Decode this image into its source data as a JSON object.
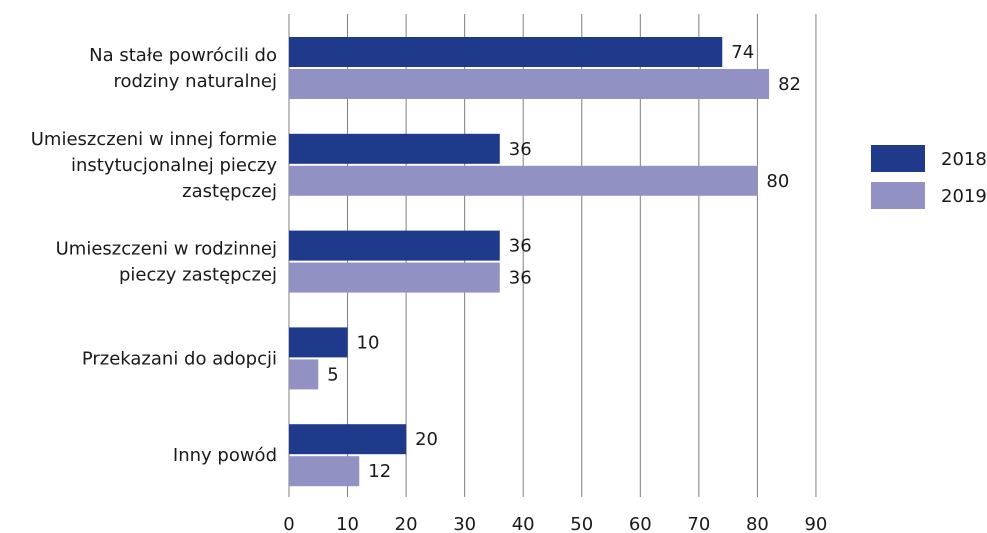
{
  "chart_data": {
    "type": "bar",
    "orientation": "horizontal",
    "categories": [
      [
        "Na stałe powrócili do",
        "rodziny naturalnej"
      ],
      [
        "Umieszczeni w innej formie",
        "instytucjonalnej pieczy",
        "zastępczej"
      ],
      [
        "Umieszczeni w rodzinnej",
        "pieczy zastępczej"
      ],
      [
        "Przekazani do adopcji"
      ],
      [
        "Inny powód"
      ]
    ],
    "series": [
      {
        "name": "2018",
        "color": "#1f3a8a",
        "values": [
          74,
          36,
          36,
          10,
          20
        ]
      },
      {
        "name": "2019",
        "color": "#9192c3",
        "values": [
          82,
          80,
          36,
          5,
          12
        ]
      }
    ],
    "xlim": [
      0,
      90
    ],
    "xticks": [
      "0",
      "10",
      "20",
      "30",
      "40",
      "50",
      "60",
      "70",
      "80",
      "90"
    ],
    "grid": "vertical",
    "legend": "right"
  }
}
